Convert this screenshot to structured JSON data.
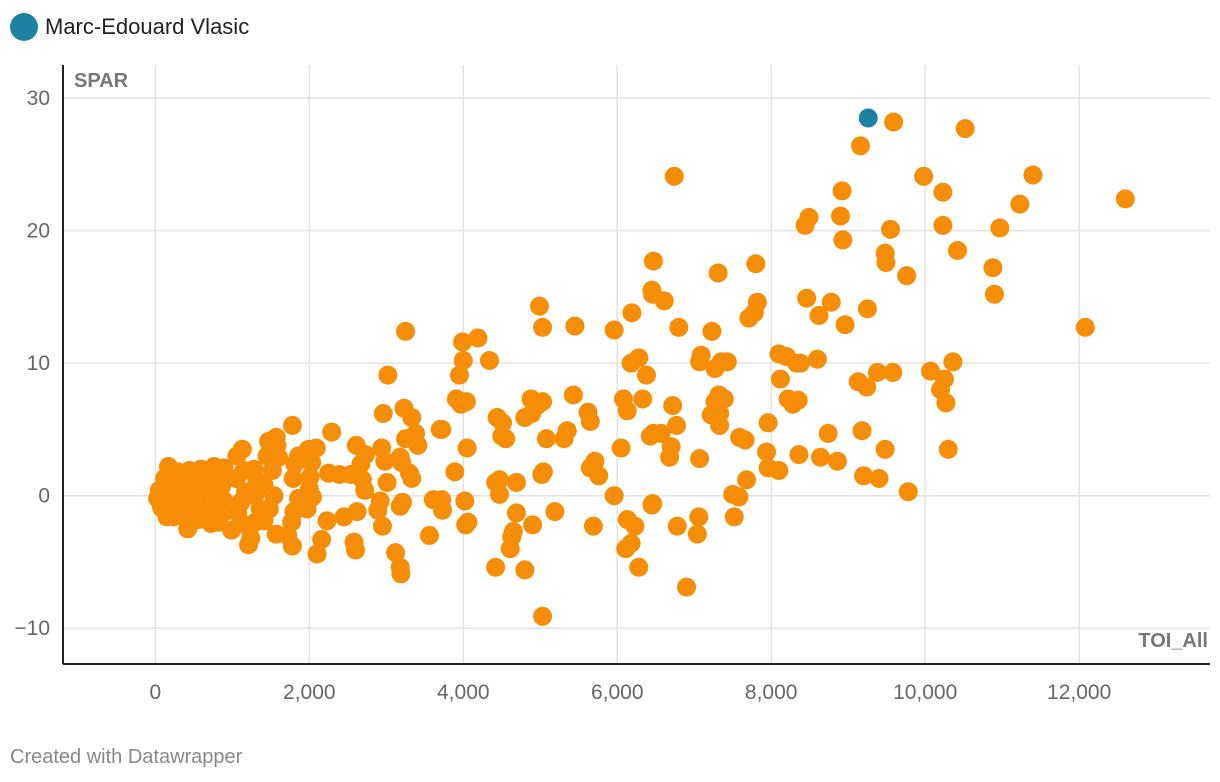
{
  "legend": {
    "label": "Marc-Edouard Vlasic",
    "color": "#1d81a2"
  },
  "footer": {
    "credit": "Created with Datawrapper"
  },
  "chart_data": {
    "type": "scatter",
    "title": "",
    "xlabel": "TOI_All",
    "ylabel": "SPAR",
    "xlim": [
      -1200,
      13700
    ],
    "ylim": [
      -12.7,
      32.5
    ],
    "xticks": [
      0,
      2000,
      4000,
      6000,
      8000,
      10000,
      12000
    ],
    "xtick_labels": [
      "0",
      "2,000",
      "4,000",
      "6,000",
      "8,000",
      "10,000",
      "12,000"
    ],
    "yticks": [
      -10,
      0,
      10,
      20,
      30
    ],
    "ytick_labels": [
      "−10",
      "0",
      "10",
      "20",
      "30"
    ],
    "grid": true,
    "legend_position": "top-left",
    "colors": {
      "others": "#f68d06",
      "highlight": "#1d81a2"
    },
    "highlight": {
      "name": "Marc-Edouard Vlasic",
      "x": 9260,
      "y": 28.5
    },
    "points": [
      [
        12600,
        22.4
      ],
      [
        12080,
        12.7
      ],
      [
        11400,
        24.2
      ],
      [
        11230,
        22.0
      ],
      [
        10970,
        20.2
      ],
      [
        10880,
        17.2
      ],
      [
        10900,
        15.2
      ],
      [
        10520,
        27.7
      ],
      [
        10420,
        18.5
      ],
      [
        10360,
        10.1
      ],
      [
        10230,
        22.9
      ],
      [
        10230,
        20.4
      ],
      [
        10250,
        8.8
      ],
      [
        10200,
        8.0
      ],
      [
        10270,
        7.0
      ],
      [
        10300,
        3.5
      ],
      [
        9980,
        24.1
      ],
      [
        10070,
        9.4
      ],
      [
        9760,
        16.6
      ],
      [
        9780,
        0.3
      ],
      [
        9590,
        28.2
      ],
      [
        9550,
        20.1
      ],
      [
        9480,
        18.3
      ],
      [
        9490,
        17.6
      ],
      [
        9580,
        9.3
      ],
      [
        9380,
        9.3
      ],
      [
        9400,
        1.3
      ],
      [
        9480,
        3.5
      ],
      [
        9160,
        26.4
      ],
      [
        9250,
        14.1
      ],
      [
        9130,
        8.6
      ],
      [
        9240,
        8.2
      ],
      [
        9180,
        4.9
      ],
      [
        9200,
        1.5
      ],
      [
        8920,
        23.0
      ],
      [
        8900,
        21.1
      ],
      [
        8930,
        19.3
      ],
      [
        8960,
        12.9
      ],
      [
        8780,
        14.6
      ],
      [
        8740,
        4.7
      ],
      [
        8620,
        13.6
      ],
      [
        8600,
        10.3
      ],
      [
        8640,
        2.9
      ],
      [
        8860,
        2.6
      ],
      [
        8490,
        21.0
      ],
      [
        8440,
        20.4
      ],
      [
        8460,
        14.9
      ],
      [
        8380,
        10.0
      ],
      [
        8330,
        10.0
      ],
      [
        8350,
        7.2
      ],
      [
        8280,
        6.9
      ],
      [
        8220,
        7.3
      ],
      [
        8360,
        3.1
      ],
      [
        8100,
        10.7
      ],
      [
        8200,
        10.5
      ],
      [
        8120,
        8.8
      ],
      [
        8100,
        1.9
      ],
      [
        7800,
        17.5
      ],
      [
        7820,
        14.6
      ],
      [
        7710,
        13.4
      ],
      [
        7780,
        13.8
      ],
      [
        7960,
        5.5
      ],
      [
        7940,
        3.3
      ],
      [
        7960,
        2.1
      ],
      [
        7660,
        4.2
      ],
      [
        7590,
        4.4
      ],
      [
        7680,
        1.2
      ],
      [
        7580,
        -0.1
      ],
      [
        7520,
        -1.6
      ],
      [
        7500,
        0.1
      ],
      [
        7310,
        16.8
      ],
      [
        7230,
        12.4
      ],
      [
        7270,
        9.6
      ],
      [
        7350,
        10.1
      ],
      [
        7430,
        10.1
      ],
      [
        7320,
        7.6
      ],
      [
        7270,
        7.1
      ],
      [
        7390,
        7.3
      ],
      [
        7220,
        6.1
      ],
      [
        7330,
        6.2
      ],
      [
        7330,
        5.3
      ],
      [
        7090,
        10.6
      ],
      [
        7070,
        10.1
      ],
      [
        7070,
        2.8
      ],
      [
        7060,
        -1.6
      ],
      [
        7040,
        -2.9
      ],
      [
        6740,
        24.1
      ],
      [
        6610,
        14.7
      ],
      [
        6800,
        12.7
      ],
      [
        6720,
        6.8
      ],
      [
        6770,
        5.3
      ],
      [
        6700,
        3.7
      ],
      [
        6680,
        2.9
      ],
      [
        6780,
        -2.3
      ],
      [
        6900,
        -6.9
      ],
      [
        6470,
        17.7
      ],
      [
        6450,
        15.5
      ],
      [
        6460,
        15.2
      ],
      [
        6570,
        4.7
      ],
      [
        6470,
        4.7
      ],
      [
        6430,
        4.5
      ],
      [
        6380,
        9.1
      ],
      [
        6330,
        7.3
      ],
      [
        6460,
        -0.6
      ],
      [
        6450,
        -0.7
      ],
      [
        6280,
        10.4
      ],
      [
        6180,
        10.0
      ],
      [
        6190,
        13.8
      ],
      [
        6130,
        6.4
      ],
      [
        6080,
        7.3
      ],
      [
        6050,
        3.6
      ],
      [
        5960,
        0.0
      ],
      [
        6130,
        -1.8
      ],
      [
        6230,
        -2.3
      ],
      [
        6110,
        -4.0
      ],
      [
        6180,
        -3.6
      ],
      [
        6280,
        -5.4
      ],
      [
        5960,
        12.5
      ],
      [
        5710,
        2.6
      ],
      [
        5650,
        2.1
      ],
      [
        5760,
        1.5
      ],
      [
        5690,
        -2.3
      ],
      [
        5620,
        6.3
      ],
      [
        5650,
        5.6
      ],
      [
        5450,
        12.8
      ],
      [
        5430,
        7.6
      ],
      [
        5310,
        4.3
      ],
      [
        5350,
        4.9
      ],
      [
        5190,
        -1.2
      ],
      [
        5030,
        12.7
      ],
      [
        4990,
        14.3
      ],
      [
        5030,
        7.1
      ],
      [
        4960,
        6.8
      ],
      [
        5080,
        4.3
      ],
      [
        5040,
        1.8
      ],
      [
        5020,
        1.6
      ],
      [
        5030,
        -9.1
      ],
      [
        4880,
        7.3
      ],
      [
        4890,
        6.2
      ],
      [
        4800,
        5.9
      ],
      [
        4900,
        -2.2
      ],
      [
        4800,
        -5.6
      ],
      [
        4690,
        1.0
      ],
      [
        4690,
        -1.3
      ],
      [
        4650,
        -2.7
      ],
      [
        4630,
        -3.1
      ],
      [
        4610,
        -4.0
      ],
      [
        4510,
        5.5
      ],
      [
        4440,
        5.9
      ],
      [
        4500,
        4.5
      ],
      [
        4550,
        4.3
      ],
      [
        4470,
        1.2
      ],
      [
        4420,
        1.0
      ],
      [
        4470,
        0.1
      ],
      [
        4420,
        -5.4
      ],
      [
        4340,
        10.2
      ],
      [
        4190,
        11.9
      ],
      [
        3990,
        11.6
      ],
      [
        4000,
        10.2
      ],
      [
        3950,
        9.1
      ],
      [
        4040,
        7.1
      ],
      [
        3970,
        6.9
      ],
      [
        3910,
        7.3
      ],
      [
        4050,
        3.6
      ],
      [
        4020,
        -0.4
      ],
      [
        4060,
        -2.0
      ],
      [
        4030,
        -2.2
      ],
      [
        3890,
        1.8
      ],
      [
        3720,
        5.0
      ],
      [
        3700,
        5.0
      ],
      [
        3610,
        -0.3
      ],
      [
        3720,
        -0.3
      ],
      [
        3730,
        -1.1
      ],
      [
        3560,
        -3.0
      ],
      [
        3250,
        12.4
      ],
      [
        3230,
        6.6
      ],
      [
        3330,
        5.9
      ],
      [
        3380,
        4.7
      ],
      [
        3410,
        3.8
      ],
      [
        3250,
        4.3
      ],
      [
        3300,
        1.7
      ],
      [
        3200,
        2.5
      ],
      [
        3180,
        2.9
      ],
      [
        3330,
        1.3
      ],
      [
        3210,
        -0.5
      ],
      [
        3180,
        -0.8
      ],
      [
        3120,
        -4.3
      ],
      [
        3190,
        -5.9
      ],
      [
        3180,
        -5.4
      ],
      [
        3020,
        9.1
      ],
      [
        2960,
        6.2
      ],
      [
        2940,
        3.6
      ],
      [
        2980,
        2.6
      ],
      [
        3010,
        1.0
      ],
      [
        2920,
        -0.4
      ],
      [
        2890,
        -1.1
      ],
      [
        2950,
        -2.3
      ],
      [
        2730,
        3.1
      ],
      [
        2670,
        2.4
      ],
      [
        2690,
        1.2
      ],
      [
        2720,
        0.4
      ],
      [
        2610,
        3.8
      ],
      [
        2540,
        1.6
      ],
      [
        2620,
        -1.2
      ],
      [
        2580,
        -3.5
      ],
      [
        2600,
        -4.1
      ],
      [
        2450,
        -1.6
      ],
      [
        2390,
        1.6
      ],
      [
        2290,
        4.8
      ],
      [
        2250,
        1.7
      ],
      [
        2230,
        -1.9
      ],
      [
        2160,
        -3.3
      ],
      [
        2100,
        -4.4
      ],
      [
        2090,
        3.6
      ],
      [
        1990,
        3.5
      ],
      [
        2030,
        2.5
      ],
      [
        2010,
        1.4
      ],
      [
        2000,
        0.5
      ],
      [
        2040,
        -0.1
      ],
      [
        1970,
        -1.0
      ],
      [
        1780,
        5.3
      ],
      [
        1860,
        3.0
      ],
      [
        1810,
        2.4
      ],
      [
        1790,
        1.3
      ],
      [
        1860,
        -0.2
      ],
      [
        1800,
        -1.2
      ],
      [
        1770,
        -2.0
      ],
      [
        1720,
        -3.0
      ],
      [
        1780,
        -3.8
      ],
      [
        1570,
        4.4
      ],
      [
        1470,
        4.1
      ],
      [
        1580,
        3.8
      ],
      [
        1600,
        2.9
      ],
      [
        1450,
        3.0
      ],
      [
        1520,
        1.9
      ],
      [
        1410,
        0.8
      ],
      [
        1540,
        0.0
      ],
      [
        1480,
        -1.0
      ],
      [
        1410,
        -1.9
      ],
      [
        1570,
        -2.9
      ],
      [
        1280,
        2.0
      ],
      [
        1320,
        1.1
      ],
      [
        1290,
        0.0
      ],
      [
        1360,
        -1.0
      ],
      [
        1300,
        -2.0
      ],
      [
        1240,
        -3.2
      ],
      [
        1210,
        -3.7
      ],
      [
        1130,
        3.5
      ],
      [
        1060,
        3.0
      ],
      [
        1150,
        1.9
      ],
      [
        1050,
        1.3
      ],
      [
        1170,
        0.3
      ],
      [
        1110,
        -0.5
      ],
      [
        1070,
        -1.3
      ],
      [
        1160,
        -2.2
      ],
      [
        990,
        -2.6
      ],
      [
        890,
        2.1
      ],
      [
        930,
        1.3
      ],
      [
        860,
        0.7
      ],
      [
        880,
        -0.3
      ],
      [
        900,
        -1.2
      ],
      [
        820,
        -2.0
      ],
      [
        760,
        2.2
      ],
      [
        710,
        1.5
      ],
      [
        720,
        0.6
      ],
      [
        790,
        -0.4
      ],
      [
        660,
        -1.2
      ],
      [
        720,
        -2.1
      ],
      [
        590,
        2.0
      ],
      [
        550,
        1.0
      ],
      [
        560,
        0.0
      ],
      [
        590,
        -1.0
      ],
      [
        560,
        -1.8
      ],
      [
        440,
        1.9
      ],
      [
        380,
        1.2
      ],
      [
        440,
        0.3
      ],
      [
        370,
        -0.5
      ],
      [
        390,
        -1.4
      ],
      [
        420,
        -2.5
      ],
      [
        290,
        1.8
      ],
      [
        250,
        0.9
      ],
      [
        270,
        0.0
      ],
      [
        290,
        -0.9
      ],
      [
        240,
        -1.6
      ],
      [
        170,
        2.2
      ],
      [
        120,
        1.3
      ],
      [
        160,
        0.6
      ],
      [
        140,
        -0.2
      ],
      [
        110,
        -0.8
      ],
      [
        150,
        -1.6
      ],
      [
        50,
        0.4
      ],
      [
        30,
        -0.2
      ],
      [
        80,
        -0.9
      ]
    ]
  }
}
